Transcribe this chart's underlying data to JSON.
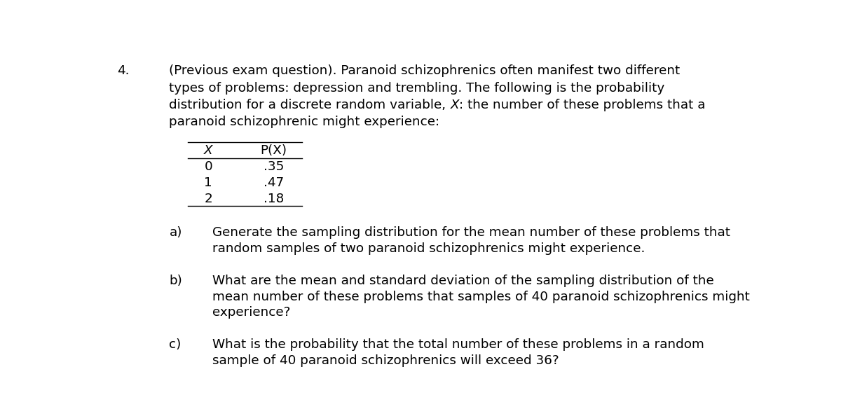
{
  "background_color": "#ffffff",
  "question_number": "4.",
  "intro_line1": "(Previous exam question). Paranoid schizophrenics often manifest two different",
  "intro_line2": "types of problems: depression and trembling. The following is the probability",
  "intro_line3_before": "distribution for a discrete random variable, ",
  "intro_line3_italic": "X",
  "intro_line3_after": ": the number of these problems that a",
  "intro_line4": "paranoid schizophrenic might experience:",
  "table_headers": [
    "X",
    "P(X)"
  ],
  "table_rows": [
    [
      "0",
      ".35"
    ],
    [
      "1",
      ".47"
    ],
    [
      "2",
      ".18"
    ]
  ],
  "parts": [
    {
      "label": "a)",
      "line1": "Generate the sampling distribution for the mean number of these problems that",
      "line2": "random samples of two paranoid schizophrenics might experience.",
      "line3": ""
    },
    {
      "label": "b)",
      "line1": "What are the mean and standard deviation of the sampling distribution of the",
      "line2": "mean number of these problems that samples of 40 paranoid schizophrenics might",
      "line3": "experience?"
    },
    {
      "label": "c)",
      "line1": "What is the probability that the total number of these problems in a random",
      "line2": "sample of 40 paranoid schizophrenics will exceed 36?",
      "line3": ""
    }
  ],
  "font_size": 13.2,
  "font_family": "DejaVu Sans"
}
